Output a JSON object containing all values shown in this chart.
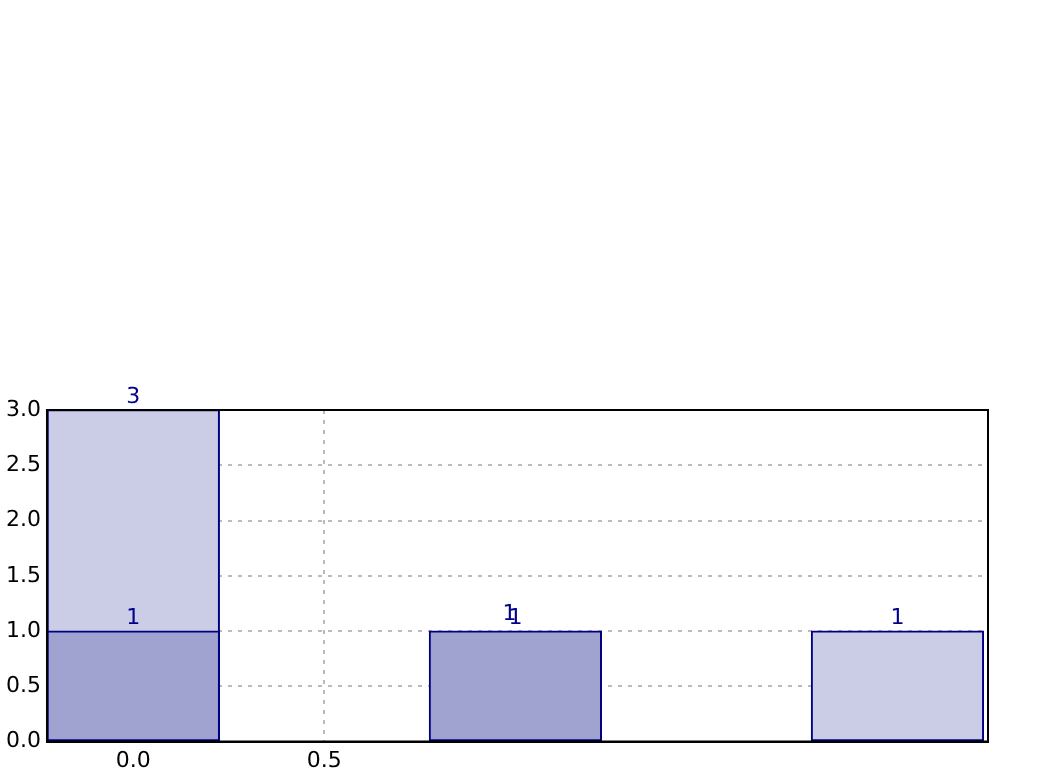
{
  "chart_data": {
    "type": "bar",
    "x": [
      0,
      1,
      2
    ],
    "series": [
      {
        "color": "#cbcce6",
        "values": [
          3,
          null,
          1
        ]
      },
      {
        "color": "#a0a3d0",
        "values": [
          1,
          1,
          null
        ]
      }
    ],
    "xlim": [
      -0.226,
      2.237
    ],
    "xticks": [
      {
        "value": 0,
        "label": "0.0"
      },
      {
        "value": 0.5,
        "label": "0.5"
      }
    ],
    "ylim": [
      0,
      3
    ],
    "yticks": [
      {
        "value": 0,
        "label": "0.0"
      },
      {
        "value": 0.5,
        "label": "0.5"
      },
      {
        "value": 1,
        "label": "1.0"
      },
      {
        "value": 1.5,
        "label": "1.5"
      },
      {
        "value": 2,
        "label": "2.0"
      },
      {
        "value": 2.5,
        "label": "2.5"
      },
      {
        "value": 3,
        "label": "3.0"
      }
    ],
    "annotations": [
      {
        "text": "1",
        "x": 1,
        "y": 1
      }
    ],
    "grid": true,
    "legend": false,
    "data_labels": true
  }
}
